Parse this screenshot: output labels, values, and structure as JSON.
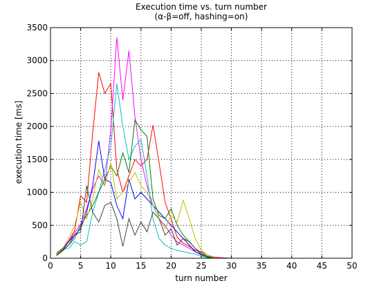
{
  "chart_data": {
    "type": "line",
    "title": "Execution time vs. turn number",
    "subtitle": "(α-β=off, hashing=on)",
    "xlabel": "turn number",
    "ylabel": "execution time [ms]",
    "xlim": [
      0,
      50
    ],
    "ylim": [
      0,
      3500
    ],
    "xticks": [
      0,
      5,
      10,
      15,
      20,
      25,
      30,
      35,
      40,
      45,
      50
    ],
    "yticks": [
      0,
      500,
      1000,
      1500,
      2000,
      2500,
      3000,
      3500
    ],
    "grid": true,
    "legend": "none",
    "series": [
      {
        "color": "#ff0000",
        "x": [
          1,
          2,
          3,
          4,
          5,
          6,
          7,
          8,
          9,
          10,
          11,
          12,
          13,
          14,
          15,
          16,
          17,
          18,
          19,
          20,
          21,
          22,
          23,
          24,
          25,
          26,
          27,
          28,
          29,
          30,
          31,
          32,
          33,
          34,
          35,
          36,
          37,
          38,
          39,
          40,
          41,
          42,
          43,
          44,
          45,
          46,
          47,
          48,
          49,
          50
        ],
        "y": [
          80,
          150,
          260,
          420,
          950,
          850,
          1900,
          2820,
          2500,
          2650,
          1350,
          1000,
          1250,
          1500,
          1400,
          1500,
          2020,
          1450,
          850,
          600,
          320,
          230,
          180,
          120,
          100,
          50,
          20,
          10,
          5,
          0,
          0,
          0,
          0,
          0,
          0,
          0,
          0,
          0,
          0,
          0,
          0,
          0,
          0,
          0,
          0,
          0,
          0,
          0,
          0,
          0
        ]
      },
      {
        "color": "#ff00ff",
        "x": [
          1,
          2,
          3,
          4,
          5,
          6,
          7,
          8,
          9,
          10,
          11,
          12,
          13,
          14,
          15,
          16,
          17,
          18,
          19,
          20,
          21,
          22,
          23,
          24,
          25,
          26,
          27,
          28,
          29,
          30,
          31,
          32,
          33,
          34,
          35,
          36,
          37,
          38,
          39,
          40,
          41,
          42,
          43,
          44,
          45,
          46,
          47,
          48,
          49,
          50
        ],
        "y": [
          60,
          120,
          250,
          380,
          520,
          750,
          1050,
          1250,
          1100,
          1950,
          3350,
          2400,
          3150,
          2150,
          1500,
          1100,
          800,
          600,
          500,
          350,
          250,
          200,
          150,
          100,
          60,
          30,
          10,
          5,
          0,
          0,
          0,
          0,
          0,
          0,
          0,
          0,
          0,
          0,
          0,
          0,
          0,
          0,
          0,
          0,
          0,
          0,
          0,
          0,
          0,
          0
        ]
      },
      {
        "color": "#00bfbf",
        "x": [
          1,
          2,
          3,
          4,
          5,
          6,
          7,
          8,
          9,
          10,
          11,
          12,
          13,
          14,
          15,
          16,
          17,
          18,
          19,
          20,
          21,
          22,
          23,
          24,
          25,
          26,
          27,
          28,
          29,
          30,
          31,
          32,
          33,
          34,
          35,
          36,
          37,
          38,
          39,
          40,
          41,
          42,
          43,
          44,
          45,
          46,
          47,
          48,
          49,
          50
        ],
        "y": [
          70,
          140,
          150,
          250,
          200,
          250,
          700,
          1000,
          1350,
          1700,
          2650,
          2000,
          1500,
          1700,
          1800,
          1250,
          600,
          300,
          200,
          150,
          120,
          100,
          80,
          60,
          30,
          10,
          0,
          0,
          0,
          0,
          0,
          0,
          0,
          0,
          0,
          0,
          0,
          0,
          0,
          0,
          0,
          0,
          0,
          0,
          0,
          0,
          0,
          0,
          0,
          0
        ]
      },
      {
        "color": "#0000ff",
        "x": [
          1,
          2,
          3,
          4,
          5,
          6,
          7,
          8,
          9,
          10,
          11,
          12,
          13,
          14,
          15,
          16,
          17,
          18,
          19,
          20,
          21,
          22,
          23,
          24,
          25,
          26,
          27,
          28,
          29,
          30,
          31,
          32,
          33,
          34,
          35,
          36,
          37,
          38,
          39,
          40,
          41,
          42,
          43,
          44,
          45,
          46,
          47,
          48,
          49,
          50
        ],
        "y": [
          60,
          130,
          250,
          350,
          450,
          700,
          1100,
          1780,
          1200,
          1150,
          800,
          600,
          1200,
          900,
          1000,
          900,
          800,
          700,
          600,
          500,
          400,
          300,
          200,
          100,
          50,
          20,
          0,
          0,
          0,
          0,
          0,
          0,
          0,
          0,
          0,
          0,
          0,
          0,
          0,
          0,
          0,
          0,
          0,
          0,
          0,
          0,
          0,
          0,
          0,
          0
        ]
      },
      {
        "color": "#007f00",
        "x": [
          1,
          2,
          3,
          4,
          5,
          6,
          7,
          8,
          9,
          10,
          11,
          12,
          13,
          14,
          15,
          16,
          17,
          18,
          19,
          20,
          21,
          22,
          23,
          24,
          25,
          26,
          27,
          28,
          29,
          30,
          31,
          32,
          33,
          34,
          35,
          36,
          37,
          38,
          39,
          40,
          41,
          42,
          43,
          44,
          45,
          46,
          47,
          48,
          49,
          50
        ],
        "y": [
          50,
          120,
          200,
          300,
          500,
          650,
          800,
          1000,
          1200,
          1400,
          1250,
          1600,
          1300,
          2100,
          1950,
          1850,
          900,
          650,
          600,
          750,
          500,
          350,
          250,
          150,
          80,
          30,
          10,
          0,
          0,
          0,
          0,
          0,
          0,
          0,
          0,
          0,
          0,
          0,
          0,
          0,
          0,
          0,
          0,
          0,
          0,
          0,
          0,
          0,
          0,
          0
        ]
      },
      {
        "color": "#bfbf00",
        "x": [
          1,
          2,
          3,
          4,
          5,
          6,
          7,
          8,
          9,
          10,
          11,
          12,
          13,
          14,
          15,
          16,
          17,
          18,
          19,
          20,
          21,
          22,
          23,
          24,
          25,
          26,
          27,
          28,
          29,
          30,
          31,
          32,
          33,
          34,
          35,
          36,
          37,
          38,
          39,
          40,
          41,
          42,
          43,
          44,
          45,
          46,
          47,
          48,
          49,
          50
        ],
        "y": [
          60,
          140,
          300,
          500,
          850,
          600,
          900,
          1350,
          1100,
          1450,
          900,
          1000,
          1150,
          1300,
          1100,
          1000,
          800,
          600,
          450,
          650,
          550,
          880,
          600,
          300,
          120,
          50,
          10,
          0,
          0,
          0,
          0,
          0,
          0,
          0,
          0,
          0,
          0,
          0,
          0,
          0,
          0,
          0,
          0,
          0,
          0,
          0,
          0,
          0,
          0,
          0
        ]
      },
      {
        "color": "#404040",
        "x": [
          1,
          2,
          3,
          4,
          5,
          6,
          7,
          8,
          9,
          10,
          11,
          12,
          13,
          14,
          15,
          16,
          17,
          18,
          19,
          20,
          21,
          22,
          23,
          24,
          25,
          26,
          27,
          28,
          29,
          30,
          31,
          32,
          33,
          34,
          35,
          36,
          37,
          38,
          39,
          40,
          41,
          42,
          43,
          44,
          45,
          46,
          47,
          48,
          49,
          50
        ],
        "y": [
          40,
          110,
          200,
          350,
          400,
          1100,
          700,
          550,
          800,
          850,
          600,
          180,
          600,
          350,
          550,
          400,
          700,
          600,
          350,
          450,
          200,
          300,
          250,
          150,
          60,
          20,
          0,
          0,
          0,
          0,
          0,
          0,
          0,
          0,
          0,
          0,
          0,
          0,
          0,
          0,
          0,
          0,
          0,
          0,
          0,
          0,
          0,
          0,
          0,
          0
        ]
      }
    ]
  }
}
